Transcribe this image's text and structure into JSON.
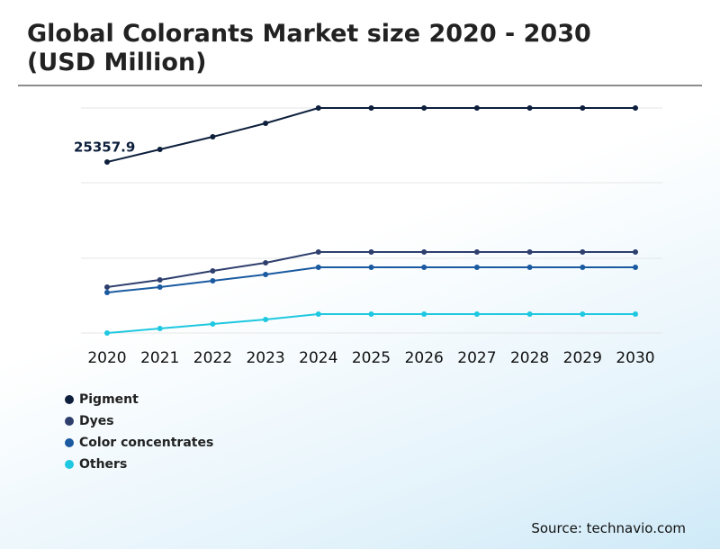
{
  "chart_data": {
    "type": "line",
    "title": "Global Colorants Market size 2020 - 2030 (USD Million)",
    "categories": [
      "2020",
      "2021",
      "2022",
      "2023",
      "2024",
      "2025",
      "2026",
      "2027",
      "2028",
      "2029",
      "2030"
    ],
    "ylim": [
      0,
      34233
    ],
    "series": [
      {
        "name": "Pigment",
        "color": "#0d1f3c",
        "values": [
          25357.9,
          27133,
          28908,
          30810,
          32966,
          32966,
          32966,
          32966,
          32966,
          32966,
          32966
        ]
      },
      {
        "name": "Dyes",
        "color": "#2e3f6e",
        "values": [
          7735,
          8749,
          10017,
          11158,
          12679,
          12679,
          12679,
          12679,
          12679,
          12679,
          12679
        ]
      },
      {
        "name": "Color concentrates",
        "color": "#1a5aa0",
        "values": [
          6974,
          7735,
          8622,
          9510,
          10524,
          10524,
          10524,
          10524,
          10524,
          10524,
          10524
        ]
      },
      {
        "name": "Others",
        "color": "#1ec8e0",
        "values": [
          1268,
          1902,
          2536,
          3170,
          3931,
          3931,
          3931,
          3931,
          3931,
          3931,
          3931
        ]
      }
    ]
  },
  "source": "Source: technavio.com"
}
